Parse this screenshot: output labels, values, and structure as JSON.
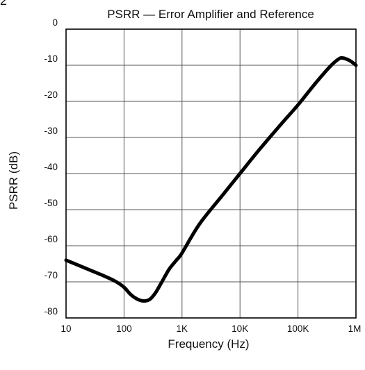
{
  "corner_mark": "2",
  "chart_data": {
    "type": "line",
    "title": "PSRR — Error Amplifier and Reference",
    "xlabel": "Frequency (Hz)",
    "ylabel": "PSRR (dB)",
    "x_scale": "log",
    "xlim": [
      10,
      1000000
    ],
    "ylim": [
      -80,
      0
    ],
    "x_ticks": [
      10,
      100,
      1000,
      10000,
      100000,
      1000000
    ],
    "x_tick_labels": [
      "10",
      "100",
      "1K",
      "10K",
      "100K",
      "1M"
    ],
    "y_ticks": [
      0,
      -10,
      -20,
      -30,
      -40,
      -50,
      -60,
      -70,
      -80
    ],
    "y_tick_labels": [
      "0",
      "-10",
      "-20",
      "-30",
      "-40",
      "-50",
      "-60",
      "-70",
      "-80"
    ],
    "grid": true,
    "series": [
      {
        "color": "#000000",
        "x": [
          10,
          20,
          40,
          70,
          100,
          130,
          170,
          220,
          280,
          350,
          450,
          600,
          800,
          1000,
          2000,
          5000,
          10000,
          20000,
          50000,
          100000,
          200000,
          350000,
          500000,
          600000,
          800000,
          1000000
        ],
        "y": [
          -64,
          -66,
          -68,
          -69.8,
          -71.5,
          -73.5,
          -74.8,
          -75.3,
          -74.8,
          -73,
          -70,
          -66.5,
          -64,
          -62,
          -54,
          -46,
          -40,
          -34,
          -26.5,
          -21,
          -15,
          -10.5,
          -8.3,
          -8,
          -8.8,
          -10
        ]
      }
    ]
  }
}
